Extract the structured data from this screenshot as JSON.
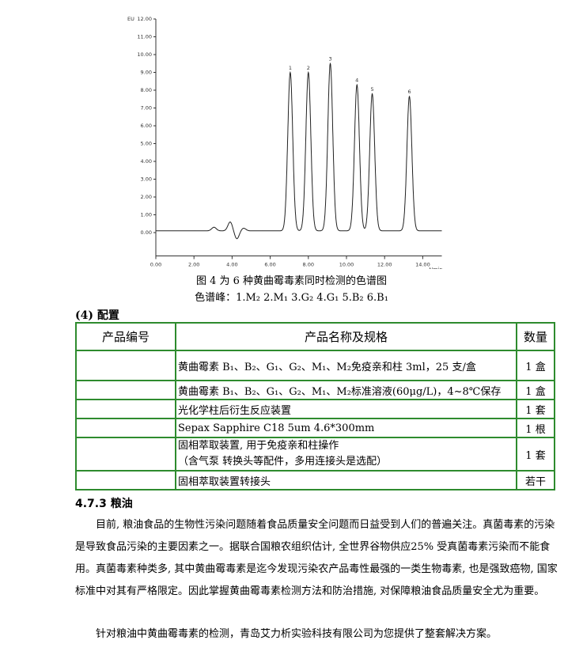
{
  "chart_data": {
    "type": "line",
    "ylabel": "EU",
    "xlabel": "t/min",
    "ylim": [
      -1,
      12
    ],
    "xlim": [
      0,
      15
    ],
    "yticks": [
      "0.00",
      "1.00",
      "2.00",
      "3.00",
      "4.00",
      "5.00",
      "6.00",
      "7.00",
      "8.00",
      "9.00",
      "10.00",
      "11.00",
      "12.00"
    ],
    "xticks": [
      "0.00",
      "2.00",
      "4.00",
      "6.00",
      "8.00",
      "10.00",
      "12.00",
      "14.00"
    ],
    "baseline": 0.1,
    "peaks": [
      {
        "label": "1",
        "rt": 7.05,
        "height": 8.9
      },
      {
        "label": "2",
        "rt": 8.0,
        "height": 8.9
      },
      {
        "label": "3",
        "rt": 9.15,
        "height": 9.4
      },
      {
        "label": "4",
        "rt": 10.55,
        "height": 8.2
      },
      {
        "label": "5",
        "rt": 11.35,
        "height": 7.7
      },
      {
        "label": "6",
        "rt": 13.3,
        "height": 7.55
      }
    ],
    "disturbances": [
      {
        "rt": 3.05,
        "height": 0.2
      },
      {
        "rt": 3.9,
        "height": 0.5
      },
      {
        "rt": 4.25,
        "height": -0.45
      },
      {
        "rt": 4.6,
        "height": 0.15
      }
    ]
  },
  "caption": {
    "line1": "图 4 为 6 种黄曲霉毒素同时检测的色谱图",
    "line2": "色谱峰：1.M₂ 2.M₁ 3.G₂ 4.G₁ 5.B₂ 6.B₁"
  },
  "config": {
    "heading": "(4) 配置",
    "headers": [
      "产品编号",
      "产品名称及规格",
      "数量"
    ],
    "rows": [
      {
        "code": "",
        "name": "黄曲霉素 B₁、B₂、G₁、G₂、M₁、M₂免疫亲和柱 3ml，25 支/盒",
        "qty": "1 盒"
      },
      {
        "code": "",
        "name": "黄曲霉素 B₁、B₂、G₁、G₂、M₁、M₂标准溶液(60μg/L)，4~8℃保存",
        "qty": "1 盒"
      },
      {
        "code": "",
        "name": "光化学柱后衍生反应装置",
        "qty": "1 套"
      },
      {
        "code": "",
        "name": "Sepax Sapphire C18 5um 4.6*300mm",
        "qty": "1 根"
      },
      {
        "code": "",
        "name": "固相萃取装置, 用于免疫亲和柱操作",
        "name2": "（含气泵  转换头等配件，多用连接头是选配）",
        "qty": "1 套"
      },
      {
        "code": "",
        "name": "固相萃取装置转接头",
        "qty": "若干"
      }
    ]
  },
  "section": {
    "title": "4.7.3 粮油",
    "p1": "目前, 粮油食品的生物性污染问题随着食品质量安全问题而日益受到人们的普遍关注。真菌毒素的污染是导致食品污染的主要因素之一。据联合国粮农组织估计, 全世界谷物供应25% 受真菌毒素污染而不能食用。真菌毒素种类多, 其中黄曲霉毒素是迄今发现污染农产品毒性最强的一类生物毒素, 也是强致癌物, 国家标准中对其有严格限定。因此掌握黄曲霉毒素检测方法和防治措施, 对保障粮油食品质量安全尤为重要。",
    "p2": "针对粮油中黄曲霉毒素的检测，青岛艾力析实验科技有限公司为您提供了整套解决方案。"
  }
}
